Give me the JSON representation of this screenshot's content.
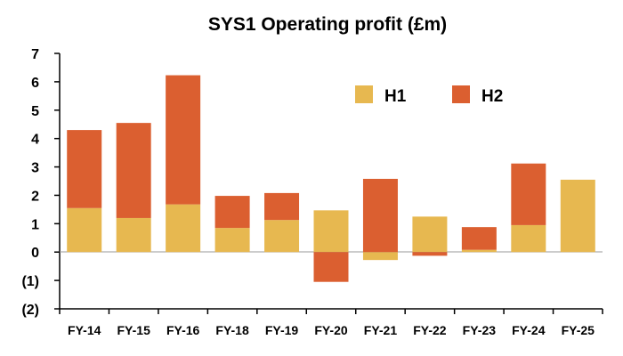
{
  "chart_data": {
    "type": "bar",
    "stacked": true,
    "title": "SYS1 Operating profit (£m)",
    "xlabel": "",
    "ylabel": "",
    "ylim": [
      -2,
      7
    ],
    "y_ticks": [
      7,
      6,
      5,
      4,
      3,
      2,
      1,
      0,
      -1,
      -2
    ],
    "y_tick_labels": [
      "7",
      "6",
      "5",
      "4",
      "3",
      "2",
      "1",
      "0",
      "(1)",
      "(2)"
    ],
    "grid": false,
    "legend_position": "top-right",
    "categories": [
      "FY-14",
      "FY-15",
      "FY-16",
      "FY-18",
      "FY-19",
      "FY-20",
      "FY-21",
      "FY-22",
      "FY-23",
      "FY-24",
      "FY-25"
    ],
    "series": [
      {
        "name": "H1",
        "color": "#E7B850",
        "values": [
          1.55,
          1.2,
          1.68,
          0.85,
          1.13,
          1.47,
          -0.28,
          1.25,
          0.08,
          0.95,
          2.55
        ]
      },
      {
        "name": "H2",
        "color": "#DB5F30",
        "values": [
          2.75,
          3.35,
          4.55,
          1.13,
          0.95,
          -1.05,
          2.58,
          -0.13,
          0.8,
          2.17,
          0
        ]
      }
    ]
  }
}
